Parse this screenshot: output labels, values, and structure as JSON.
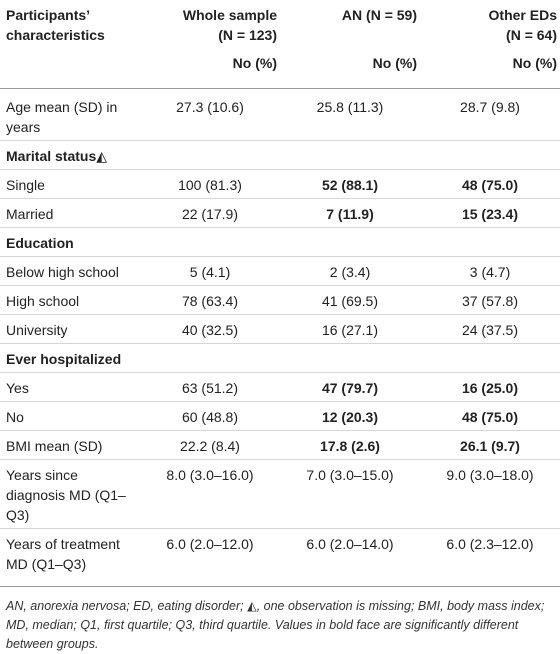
{
  "table": {
    "headers": {
      "characteristics_line1": "Participants’",
      "characteristics_line2": "characteristics",
      "whole_line1": "Whole sample",
      "whole_line2": "(N = 123)",
      "an_line1": "AN (N = 59)",
      "other_line1": "Other EDs",
      "other_line2": "(N = 64)",
      "subheader": "No (%)"
    },
    "rows": {
      "age_label": "Age mean (SD) in years",
      "age_whole": "27.3 (10.6)",
      "age_an": "25.8 (11.3)",
      "age_other": "28.7 (9.8)",
      "marital_section": "Marital status◭",
      "single_label": "Single",
      "single_whole": "100 (81.3)",
      "single_an": "52 (88.1)",
      "single_other": "48 (75.0)",
      "married_label": "Married",
      "married_whole": "22 (17.9)",
      "married_an": "7 (11.9)",
      "married_other": "15 (23.4)",
      "education_section": "Education",
      "below_label": "Below high school",
      "below_whole": "5 (4.1)",
      "below_an": "2 (3.4)",
      "below_other": "3 (4.7)",
      "high_label": "High school",
      "high_whole": "78 (63.4)",
      "high_an": "41 (69.5)",
      "high_other": "37 (57.8)",
      "uni_label": "University",
      "uni_whole": "40 (32.5)",
      "uni_an": "16 (27.1)",
      "uni_other": "24 (37.5)",
      "hosp_section": "Ever hospitalized",
      "yes_label": "Yes",
      "yes_whole": "63 (51.2)",
      "yes_an": "47 (79.7)",
      "yes_other": "16 (25.0)",
      "no_label": "No",
      "no_whole": "60 (48.8)",
      "no_an": "12 (20.3)",
      "no_other": "48 (75.0)",
      "bmi_label": "BMI mean (SD)",
      "bmi_whole": "22.2 (8.4)",
      "bmi_an": "17.8 (2.6)",
      "bmi_other": "26.1 (9.7)",
      "years_diag_label": "Years since diagnosis MD (Q1–Q3)",
      "years_diag_whole": "8.0 (3.0–16.0)",
      "years_diag_an": "7.0 (3.0–15.0)",
      "years_diag_other": "9.0 (3.0–18.0)",
      "years_treat_label": "Years of treatment MD (Q1–Q3)",
      "years_treat_whole": "6.0 (2.0–12.0)",
      "years_treat_an": "6.0 (2.0–14.0)",
      "years_treat_other": "6.0 (2.3–12.0)"
    },
    "footnote": "AN, anorexia nervosa; ED, eating disorder; ◭, one observation is missing; BMI, body mass index; MD, median; Q1, first quartile; Q3, third quartile. Values in bold face are significantly different between groups."
  }
}
